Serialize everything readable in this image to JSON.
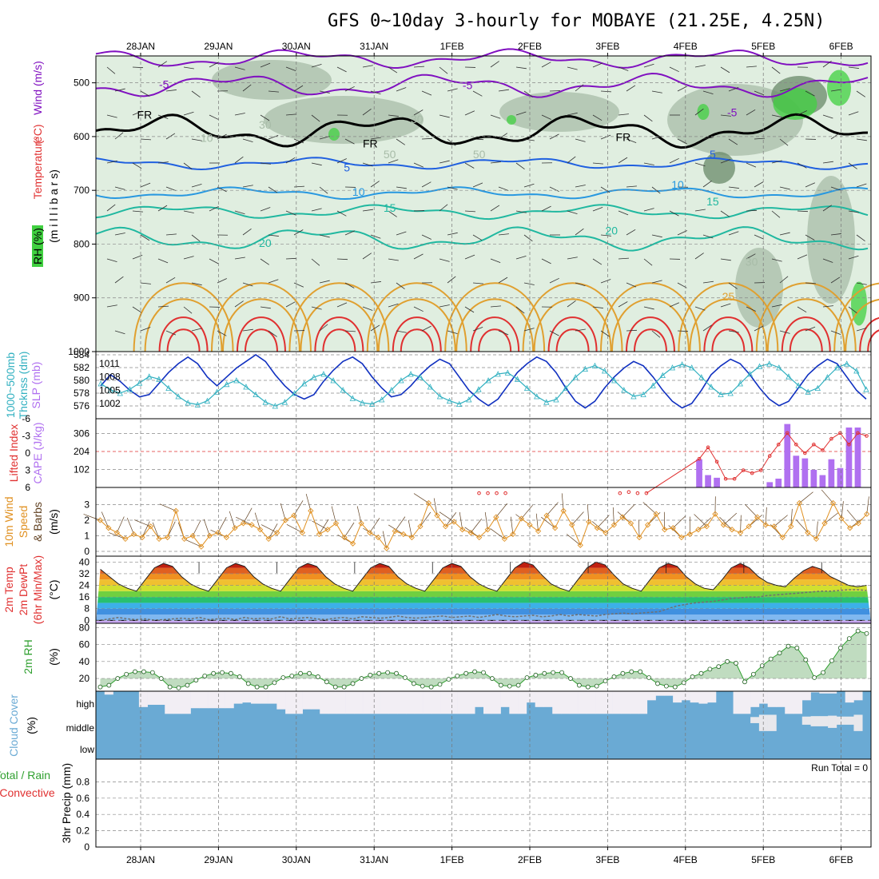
{
  "title": "GFS 0~10day 3-hourly for MOBAYE (21.25E, 4.25N)",
  "dates": [
    "28JAN",
    "29JAN",
    "30JAN",
    "31JAN",
    "1FEB",
    "2FEB",
    "3FEB",
    "4FEB",
    "5FEB",
    "6FEB"
  ],
  "colors": {
    "temp_warm": "#e0a030",
    "temp_hot": "#e03030",
    "temp_cool": "#20b8a0",
    "temp_cold": "#2060e0",
    "temp_mid": "#2898e0",
    "temp_neg": "#8010c0",
    "rh_light": "#e0eee0",
    "rh_mid": "#a8bca8",
    "rh_dark": "#6a8a6a",
    "rh_green": "#40d040",
    "slp": "#1030c0",
    "thickness": "#30b0c0",
    "cape": "#b070f0",
    "li": "#e03030",
    "wind": "#e09020",
    "cloud": "#6aaad4",
    "rh2m": "#30a030",
    "dewpt": "#707070"
  },
  "chart_data": [
    {
      "type": "heatmap",
      "name_label": "cross-section",
      "y_axis_labels": {
        "wind": "Wind",
        "wind_units": "(m/s)",
        "temp": "Temperature",
        "temp_units": "(°C)",
        "rh": "RH (%)",
        "pressure": "(m i l l i b a r s)"
      },
      "yticks": [
        500,
        600,
        700,
        800,
        900,
        1000
      ],
      "ylim": [
        1000,
        450
      ],
      "contour_labels": [
        {
          "text": "-5",
          "x": 0.3,
          "p": 510,
          "color": "temp_neg"
        },
        {
          "text": "-5",
          "x": 4.2,
          "p": 512,
          "color": "temp_neg"
        },
        {
          "text": "-5",
          "x": 7.6,
          "p": 562,
          "color": "temp_neg"
        },
        {
          "text": "FR",
          "x": 0.05,
          "p": 567,
          "color": "black"
        },
        {
          "text": "FR",
          "x": 2.95,
          "p": 620,
          "color": "black"
        },
        {
          "text": "FR",
          "x": 6.2,
          "p": 608,
          "color": "black"
        },
        {
          "text": "5",
          "x": 2.65,
          "p": 665,
          "color": "temp_cold"
        },
        {
          "text": "5",
          "x": 7.35,
          "p": 640,
          "color": "temp_cold"
        },
        {
          "text": "10",
          "x": 2.8,
          "p": 710,
          "color": "temp_mid"
        },
        {
          "text": "10",
          "x": 6.9,
          "p": 697,
          "color": "temp_mid"
        },
        {
          "text": "15",
          "x": 3.2,
          "p": 740,
          "color": "temp_cool"
        },
        {
          "text": "15",
          "x": 7.35,
          "p": 728,
          "color": "temp_cool"
        },
        {
          "text": "20",
          "x": 1.6,
          "p": 805,
          "color": "temp_cool"
        },
        {
          "text": "20",
          "x": 6.05,
          "p": 782,
          "color": "temp_cool"
        },
        {
          "text": "25",
          "x": 7.55,
          "p": 905,
          "color": "temp_warm"
        },
        {
          "text": "30",
          "x": 1.6,
          "p": 585,
          "color": "rh_mid"
        },
        {
          "text": "30",
          "x": 3.55,
          "p": 575,
          "color": "rh_mid"
        },
        {
          "text": "50",
          "x": 3.2,
          "p": 640,
          "color": "rh_mid"
        },
        {
          "text": "50",
          "x": 4.35,
          "p": 640,
          "color": "rh_mid"
        },
        {
          "text": "10",
          "x": 0.85,
          "p": 610,
          "color": "rh_mid"
        },
        {
          "text": "30",
          "x": 7.85,
          "p": 840,
          "color": "rh_mid"
        }
      ]
    },
    {
      "type": "line",
      "name_label": "slp-thickness",
      "ylabel_left": "Thcknss (dm)",
      "ylabel_left2": "1000~500mb",
      "ylabel_right": "SLP (mb)",
      "yticks_left": [
        576,
        578,
        580,
        582,
        584
      ],
      "yticks_right": [
        1002,
        1005,
        1008,
        1011
      ],
      "ylim_left": [
        575,
        584
      ],
      "ylim_right": [
        1000,
        1013
      ],
      "slp": [
        1006,
        1008.5,
        1007,
        1005,
        1003.5,
        1004,
        1006.5,
        1009,
        1011,
        1012.5,
        1011,
        1008,
        1006,
        1008,
        1010,
        1011.5,
        1013,
        1011.5,
        1008.5,
        1006,
        1004,
        1003,
        1004,
        1007,
        1009.5,
        1011.5,
        1012.5,
        1011,
        1008,
        1005.5,
        1003.5,
        1004,
        1006,
        1008.5,
        1010.5,
        1012,
        1011,
        1008,
        1005,
        1003,
        1001.5,
        1003,
        1006,
        1009,
        1011,
        1012.5,
        1011.5,
        1009,
        1005.5,
        1002.5,
        1001,
        1002.5,
        1005.5,
        1008,
        1010,
        1011.5,
        1010.5,
        1008,
        1005,
        1002.5,
        1001,
        1002,
        1005,
        1008.5,
        1010.5,
        1012,
        1011,
        1008.5,
        1005.5,
        1003,
        1001.5,
        1002.5,
        1005.5,
        1008.5,
        1010.5,
        1012,
        1011,
        1008,
        1005,
        1003
      ],
      "thickness": [
        579.5,
        578.5,
        578,
        578.6,
        579.6,
        580.6,
        580.2,
        578.8,
        577.5,
        576.5,
        576.2,
        576.8,
        578.2,
        579.4,
        580,
        579,
        577.8,
        576.6,
        576,
        576.6,
        578,
        579.5,
        580.5,
        581,
        580,
        578.5,
        577.2,
        576.5,
        576.3,
        577,
        578.5,
        580,
        581,
        580.5,
        579,
        577.5,
        576.8,
        576.3,
        577,
        578.6,
        580,
        581,
        581.2,
        580.2,
        578.8,
        577.5,
        576.6,
        577,
        578.8,
        580.5,
        581.8,
        582.3,
        581.5,
        580,
        578.5,
        577.5,
        577.8,
        579.2,
        580.8,
        582,
        582.5,
        582,
        580.5,
        579,
        577.8,
        578,
        579.5,
        581,
        582.2,
        582.6,
        582,
        580.6,
        579.2,
        578.2,
        578.8,
        580.5,
        582,
        582.6,
        581.5,
        578.6
      ]
    },
    {
      "type": "bar",
      "name_label": "cape-li",
      "ylabel_left": "Lifted Index",
      "ylabel_right": "CAPE (J/kg)",
      "yticks_left": [
        6,
        3,
        0,
        -3,
        -6
      ],
      "yticks_right": [
        102,
        204,
        306
      ],
      "ylim_cape": [
        0,
        390
      ],
      "cape": [
        0,
        0,
        0,
        0,
        0,
        0,
        0,
        0,
        0,
        0,
        0,
        0,
        0,
        0,
        0,
        0,
        0,
        0,
        0,
        0,
        0,
        0,
        0,
        0,
        0,
        0,
        0,
        0,
        0,
        0,
        0,
        0,
        0,
        0,
        0,
        0,
        0,
        0,
        0,
        0,
        0,
        0,
        0,
        0,
        0,
        0,
        0,
        0,
        0,
        0,
        0,
        0,
        0,
        0,
        0,
        0,
        0,
        0,
        0,
        0,
        0,
        0,
        0,
        0,
        0,
        0,
        0,
        0,
        160,
        70,
        55,
        0,
        0,
        0,
        0,
        0,
        30,
        50,
        360,
        180,
        165,
        100,
        70,
        160,
        110,
        340,
        340,
        0
      ],
      "li": [
        9,
        9,
        9,
        9,
        9,
        9,
        9,
        9,
        9,
        9,
        9,
        9,
        9,
        9,
        9,
        9,
        9,
        9,
        9,
        9,
        9,
        9,
        9,
        9,
        9,
        9,
        9,
        9,
        9,
        9,
        9,
        9,
        9,
        9,
        9,
        9,
        9,
        9,
        9,
        9,
        9,
        9,
        9,
        8,
        7.5,
        7,
        7.5,
        9,
        9,
        9,
        9,
        9,
        9,
        9,
        9,
        9,
        9,
        9,
        8.5,
        8,
        6.8,
        7,
        8.2,
        9,
        9,
        9,
        9,
        9,
        1,
        -1,
        1.5,
        4.5,
        4.5,
        3,
        3.5,
        3,
        0.5,
        -1.5,
        -3.5,
        -1.5,
        0,
        -1.5,
        -0.5,
        -2.5,
        -3.5,
        -1.5,
        -3.5,
        -3
      ]
    },
    {
      "type": "line",
      "name_label": "wind10m",
      "ylabel": "10m Wind",
      "ylabel2": "Speed",
      "ylabel3": "& Barbs",
      "ylabel_units": "(m/s)",
      "yticks": [
        0,
        1,
        2,
        3
      ],
      "ylim": [
        0,
        4
      ],
      "values": [
        2,
        1.5,
        1.2,
        0.8,
        1.1,
        0.9,
        1.6,
        0.8,
        0.9,
        2.6,
        0.8,
        1,
        0.3,
        1,
        1.2,
        0.9,
        1.5,
        1.8,
        1.7,
        1.4,
        0.8,
        1.2,
        2,
        2.3,
        1.2,
        2.6,
        1.1,
        1.4,
        1.8,
        0.9,
        0.5,
        1.8,
        1.2,
        0.9,
        0.2,
        1.3,
        1.1,
        0.9,
        1.6,
        3.1,
        2.3,
        1.6,
        1.9,
        1.4,
        1.2,
        0.9,
        1.4,
        2.2,
        0.8,
        1.1,
        2.1,
        1.7,
        1.3,
        2.3,
        1.5,
        2.6,
        1.7,
        0.4,
        1.9,
        1.5,
        1.2,
        1.7,
        2.2,
        1.8,
        0.9,
        1.7,
        2.4,
        1.4,
        1.5,
        0.9,
        1.1,
        1.4,
        1.6,
        2.4,
        1.7,
        1.4,
        1.2,
        1.6,
        2.2,
        1.7,
        1.6,
        0.9,
        1.6,
        3.1,
        1.2,
        0.8,
        1.8,
        3.1,
        2.1,
        1.5,
        1.8,
        2.4
      ]
    },
    {
      "type": "area",
      "name_label": "temp2m",
      "ylabel": "2m Temp",
      "ylabel2": "2m DewPt",
      "ylabel3": "(6hr Min/Max)",
      "ylabel_units": "(°C)",
      "yticks": [
        0,
        8,
        16,
        24,
        32,
        40
      ],
      "ylim": [
        -2,
        44
      ],
      "temp": [
        35,
        30,
        25,
        22,
        20,
        28,
        36,
        39,
        37,
        30,
        25,
        22,
        20,
        28,
        36,
        39,
        37,
        30,
        25,
        22,
        20,
        28,
        36,
        39,
        37,
        30,
        25,
        22,
        20,
        28,
        36,
        39,
        37,
        30,
        25,
        22,
        20,
        28,
        36,
        39,
        37,
        30,
        25,
        22,
        20,
        28,
        36,
        40,
        38,
        31,
        25,
        22,
        20,
        28,
        36,
        40,
        38,
        31,
        25,
        22,
        20,
        28,
        36,
        39,
        37,
        30,
        25,
        22,
        21,
        28,
        36,
        39,
        36,
        30,
        26,
        24,
        23,
        29,
        34,
        37,
        35,
        30,
        27,
        24,
        23,
        24
      ],
      "dewpt": [
        0,
        1,
        2,
        1,
        0.5,
        1,
        0,
        0.5,
        1,
        1.5,
        1,
        2,
        0.5,
        1,
        1.5,
        0.5,
        2,
        1,
        1.5,
        1,
        2.5,
        1,
        1.5,
        2,
        1,
        0.5,
        1.5,
        2,
        1,
        2.5,
        2,
        1.5,
        2,
        3,
        2,
        1.5,
        2,
        2.5,
        3,
        2,
        2.5,
        3,
        2,
        3,
        4,
        3,
        2.5,
        3,
        3.5,
        2.5,
        3,
        4,
        3,
        4,
        3.5,
        3,
        4,
        4.5,
        5,
        4.5,
        5,
        5.5,
        6,
        8,
        10,
        11,
        12,
        12.5,
        13,
        14,
        15,
        15.5,
        16,
        16,
        17,
        17.5,
        18,
        18.5,
        19,
        19.5,
        20,
        20,
        20.5,
        21,
        21,
        20.5
      ]
    },
    {
      "type": "area",
      "name_label": "rh2m",
      "ylabel": "2m RH",
      "ylabel_units": "(%)",
      "yticks": [
        20,
        40,
        60,
        80
      ],
      "ylim": [
        5,
        85
      ],
      "values": [
        10,
        12,
        20,
        25,
        28,
        28,
        27,
        20,
        10,
        9,
        12,
        18,
        23,
        26,
        27,
        26,
        22,
        14,
        10,
        10,
        15,
        21,
        23,
        26,
        26,
        22,
        16,
        10,
        10,
        14,
        20,
        24,
        26,
        27,
        26,
        21,
        14,
        11,
        10,
        13,
        19,
        23,
        26,
        28,
        27,
        20,
        12,
        11,
        12,
        21,
        24,
        26,
        27,
        27,
        20,
        12,
        10,
        11,
        17,
        22,
        26,
        28,
        28,
        21,
        14,
        11,
        10,
        15,
        22,
        26,
        31,
        34,
        40,
        38,
        16,
        25,
        35,
        43,
        50,
        58,
        56,
        42,
        21,
        27,
        41,
        56,
        67,
        76,
        73
      ]
    },
    {
      "type": "area",
      "name_label": "cloud",
      "ylabel": "Cloud Cover",
      "ylabel_units": "(%)",
      "level_labels": [
        "high",
        "middle",
        "low"
      ],
      "high": [
        100,
        85,
        100,
        100,
        100,
        30,
        40,
        40,
        0,
        0,
        0,
        25,
        25,
        25,
        25,
        25,
        45,
        50,
        45,
        45,
        45,
        20,
        0,
        0,
        20,
        20,
        0,
        0,
        0,
        0,
        0,
        0,
        0,
        0,
        0,
        0,
        0,
        0,
        0,
        0,
        0,
        0,
        0,
        0,
        30,
        0,
        0,
        30,
        0,
        0,
        50,
        30,
        30,
        0,
        0,
        0,
        0,
        0,
        0,
        0,
        0,
        0,
        0,
        0,
        60,
        80,
        80,
        50,
        60,
        50,
        45,
        50,
        100,
        100,
        0,
        0,
        30,
        45,
        30,
        30,
        0,
        0,
        60,
        95,
        90,
        90,
        100,
        50,
        60,
        100
      ],
      "mid": [
        0,
        0,
        0,
        0,
        0,
        0,
        0,
        0,
        0,
        0,
        0,
        0,
        0,
        0,
        0,
        0,
        0,
        0,
        0,
        0,
        0,
        0,
        0,
        0,
        0,
        0,
        0,
        0,
        0,
        0,
        0,
        0,
        0,
        0,
        0,
        0,
        0,
        0,
        0,
        0,
        0,
        0,
        0,
        0,
        0,
        0,
        0,
        0,
        0,
        0,
        0,
        0,
        0,
        0,
        0,
        0,
        0,
        0,
        0,
        0,
        0,
        0,
        0,
        0,
        0,
        0,
        0,
        0,
        0,
        0,
        0,
        0,
        0,
        0,
        0,
        0,
        30,
        80,
        80,
        0,
        0,
        0,
        40,
        50,
        50,
        60,
        40,
        40,
        80,
        0
      ],
      "low": 0
    },
    {
      "type": "bar",
      "name_label": "precip",
      "ylabel": "3hr Precip (mm)",
      "ylabel_total": "Total / Rain",
      "ylabel_conv": "Convective",
      "yticks": [
        0,
        0.2,
        0.4,
        0.6,
        0.8
      ],
      "ylim": [
        0,
        1
      ],
      "run_total": "Run Total = 0",
      "values": []
    }
  ]
}
